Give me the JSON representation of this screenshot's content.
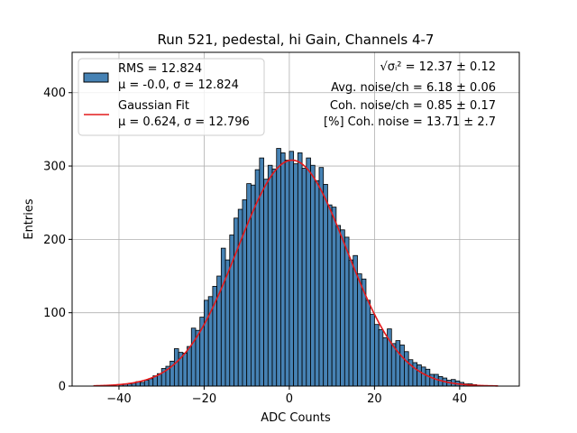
{
  "chart_data": {
    "type": "bar",
    "title": "Run 521, pedestal, hi Gain, Channels 4-7",
    "xlabel": "ADC Counts",
    "ylabel": "Entries",
    "xlim": [
      -51,
      54
    ],
    "ylim": [
      0,
      455
    ],
    "xticks": [
      -40,
      -20,
      0,
      20,
      40
    ],
    "xtick_labels": [
      "−40",
      "−20",
      "0",
      "20",
      "40"
    ],
    "yticks": [
      0,
      100,
      200,
      300,
      400
    ],
    "ytick_labels": [
      "0",
      "100",
      "200",
      "300",
      "400"
    ],
    "grid": true,
    "legend_position": "top-left",
    "bin_width": 1,
    "bin_left_edges": [
      -40,
      -39,
      -38,
      -37,
      -36,
      -35,
      -34,
      -33,
      -32,
      -31,
      -30,
      -29,
      -28,
      -27,
      -26,
      -25,
      -24,
      -23,
      -22,
      -21,
      -20,
      -19,
      -18,
      -17,
      -16,
      -15,
      -14,
      -13,
      -12,
      -11,
      -10,
      -9,
      -8,
      -7,
      -6,
      -5,
      -4,
      -3,
      -2,
      -1,
      0,
      1,
      2,
      3,
      4,
      5,
      6,
      7,
      8,
      9,
      10,
      11,
      12,
      13,
      14,
      15,
      16,
      17,
      18,
      19,
      20,
      21,
      22,
      23,
      24,
      25,
      26,
      27,
      28,
      29,
      30,
      31,
      32,
      33,
      34,
      35,
      36,
      37,
      38,
      39,
      40,
      41,
      42,
      43
    ],
    "counts": [
      2,
      3,
      3,
      4,
      6,
      5,
      8,
      10,
      14,
      17,
      24,
      27,
      34,
      51,
      46,
      45,
      54,
      79,
      76,
      94,
      117,
      122,
      136,
      150,
      188,
      172,
      206,
      229,
      241,
      254,
      276,
      274,
      295,
      311,
      282,
      301,
      296,
      324,
      318,
      308,
      320,
      303,
      318,
      297,
      311,
      301,
      280,
      298,
      275,
      247,
      244,
      219,
      213,
      203,
      172,
      178,
      153,
      146,
      117,
      98,
      84,
      77,
      66,
      78,
      58,
      62,
      56,
      47,
      36,
      32,
      29,
      26,
      23,
      16,
      16,
      13,
      11,
      8,
      9,
      7,
      5,
      3,
      3,
      2
    ],
    "series": [
      {
        "name": "RMS = 12.824",
        "subtitle": "μ = -0.0, σ = 12.824",
        "kind": "histogram",
        "color": "#4682b4",
        "edgecolor": "#000000"
      },
      {
        "name": "Gaussian Fit",
        "subtitle": "μ = 0.624, σ = 12.796",
        "kind": "curve",
        "color": "#e41a1c",
        "mu": 0.624,
        "sigma": 12.796,
        "amplitude": 308,
        "x_range": [
          -46,
          49
        ]
      }
    ],
    "annotations": [
      {
        "symbol": "√σᵢ²",
        "text": " = 12.37 ± 0.12"
      },
      {
        "text": "Avg. noise/ch = 6.18 ± 0.06"
      },
      {
        "text": "Coh. noise/ch = 0.85 ± 0.17"
      },
      {
        "text": "[%] Coh. noise = 13.71 ± 2.7"
      }
    ]
  },
  "colors": {
    "bar_fill": "#4682b4",
    "bar_edge": "#000000",
    "fit_line": "#e41a1c",
    "grid": "#b0b0b0",
    "axes": "#000000"
  }
}
